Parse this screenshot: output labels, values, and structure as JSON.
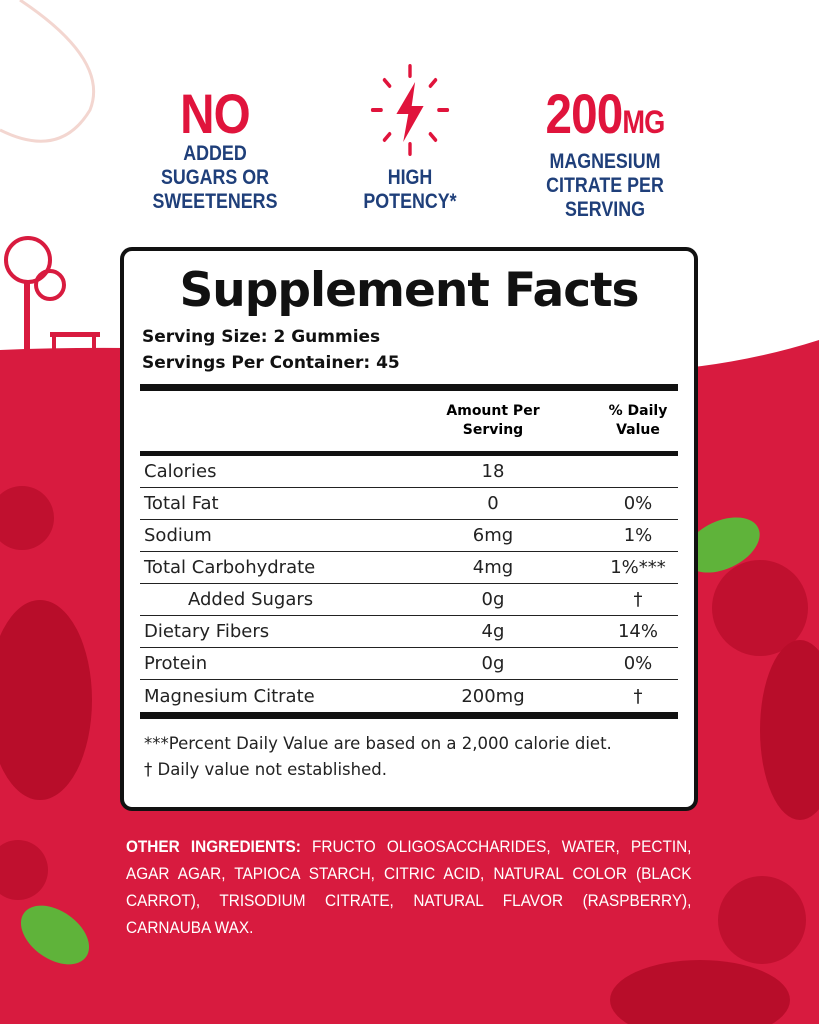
{
  "colors": {
    "brand_red": "#e0143c",
    "navy": "#1f3f7a",
    "background_red": "#d81b3f"
  },
  "claims": [
    {
      "headline": "NO",
      "text": [
        "ADDED",
        "SUGARS OR",
        "SWEETENERS"
      ]
    },
    {
      "icon": "lightning-bolt-icon",
      "text": [
        "HIGH",
        "POTENCY*"
      ]
    },
    {
      "headline": "200",
      "headline_unit": "MG",
      "text": [
        "MAGNESIUM",
        "CITRATE PER",
        "SERVING"
      ]
    }
  ],
  "facts": {
    "title": "Supplement Facts",
    "serving_size": "Serving Size: 2 Gummies",
    "servings_per_container": "Servings Per Container: 45",
    "col_amount": [
      "Amount Per",
      "Serving"
    ],
    "col_dv": [
      "% Daily",
      "Value"
    ],
    "rows": [
      {
        "name": "Calories",
        "amount": "18",
        "dv": ""
      },
      {
        "name": "Total Fat",
        "amount": "0",
        "dv": "0%"
      },
      {
        "name": "Sodium",
        "amount": "6mg",
        "dv": "1%"
      },
      {
        "name": "Total Carbohydrate",
        "amount": "4mg",
        "dv": "1%***"
      },
      {
        "name": "Added Sugars",
        "amount": "0g",
        "dv": "†"
      },
      {
        "name": "Dietary Fibers",
        "amount": "4g",
        "dv": "14%"
      },
      {
        "name": "Protein",
        "amount": "0g",
        "dv": "0%"
      },
      {
        "name": "Magnesium Citrate",
        "amount": "200mg",
        "dv": "†"
      }
    ],
    "footnotes": [
      "***Percent Daily Value  are based on a 2,000 calorie diet.",
      "† Daily value not established."
    ]
  },
  "ingredients": {
    "label": "OTHER INGREDIENTS:",
    "text": "FRUCTO OLIGOSACCHARIDES, WATER, PECTIN, AGAR AGAR, TAPIOCA STARCH, CITRIC ACID, NATURAL COLOR (BLACK CARROT), TRISODIUM CITRATE, NATURAL FLAVOR (RASPBERRY), CARNAUBA WAX."
  }
}
